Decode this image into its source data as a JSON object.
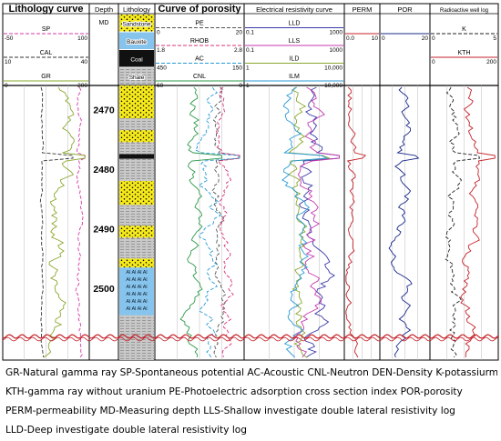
{
  "chart_data": {
    "type": "line",
    "tracks": [
      {
        "title": "Lithology curve",
        "curves": [
          {
            "name": "SP",
            "min": "-50",
            "max": "100",
            "color": "#d63aa8",
            "dash": true
          },
          {
            "name": "CAL",
            "min": "10",
            "max": "40",
            "color": "#333333",
            "dash": true
          },
          {
            "name": "GR",
            "min": "0",
            "max": "200",
            "color": "#8aa82e",
            "dash": false
          }
        ]
      },
      {
        "title": "Depth",
        "unit": "MD"
      },
      {
        "title": "Lithology",
        "legend": [
          "Sandstone",
          "Bauxite",
          "Coal",
          "Shale"
        ]
      },
      {
        "title": "Curve of porosity",
        "curves": [
          {
            "name": "PE",
            "min": "0",
            "max": "20",
            "color": "#555555",
            "dash": true
          },
          {
            "name": "RHOB",
            "min": "1.8",
            "max": "2.8",
            "color": "#d6337a",
            "dash": true
          },
          {
            "name": "AC",
            "min": "450",
            "max": "150",
            "color": "#2a9ad6",
            "dash": true
          },
          {
            "name": "CNL",
            "min": "60",
            "max": "0",
            "color": "#2e9a4a",
            "dash": false
          }
        ]
      },
      {
        "title": "Electrical resistivity curve",
        "curves": [
          {
            "name": "LLD",
            "min": "0.1",
            "max": "1000",
            "color": "#3a3aa8",
            "dash": false
          },
          {
            "name": "LLS",
            "min": "0.1",
            "max": "1000",
            "color": "#c43ab0",
            "dash": false
          },
          {
            "name": "ILD",
            "min": "1",
            "max": "10,000",
            "color": "#8aa82e",
            "dash": false
          },
          {
            "name": "ILM",
            "min": "1",
            "max": "10,000",
            "color": "#2a9ad6",
            "dash": false
          }
        ]
      },
      {
        "title": "PERM",
        "curves": [
          {
            "name": "",
            "min": "0.0",
            "max": "10",
            "color": "#c4222a",
            "dash": false
          }
        ]
      },
      {
        "title": "POR",
        "curves": [
          {
            "name": "",
            "min": "0",
            "max": "20",
            "color": "#1a2a8a",
            "dash": false
          }
        ]
      },
      {
        "title": "Radioactive well log",
        "curves": [
          {
            "name": "K",
            "min": "0",
            "max": "5",
            "color": "#222222",
            "dash": true
          },
          {
            "name": "KTH",
            "min": "0",
            "max": "200",
            "color": "#c4222a",
            "dash": false
          }
        ]
      }
    ],
    "depth_ticks": [
      2470,
      2480,
      2490,
      2500
    ],
    "depth_range": [
      2466,
      2512
    ],
    "lithology_column": [
      {
        "top": 2466,
        "base": 2471.5,
        "rock": "Sandstone"
      },
      {
        "top": 2471.5,
        "base": 2473.5,
        "rock": "Shale"
      },
      {
        "top": 2473.5,
        "base": 2475.5,
        "rock": "Sandstone"
      },
      {
        "top": 2475.5,
        "base": 2477.5,
        "rock": "Shale"
      },
      {
        "top": 2477.5,
        "base": 2478.3,
        "rock": "Coal"
      },
      {
        "top": 2478.3,
        "base": 2482,
        "rock": "Shale"
      },
      {
        "top": 2482,
        "base": 2486,
        "rock": "Sandstone"
      },
      {
        "top": 2486,
        "base": 2489.5,
        "rock": "Shale"
      },
      {
        "top": 2489.5,
        "base": 2491.5,
        "rock": "Sandstone"
      },
      {
        "top": 2491.5,
        "base": 2495,
        "rock": "Shale"
      },
      {
        "top": 2495,
        "base": 2496.5,
        "rock": "Sandstone"
      },
      {
        "top": 2496.5,
        "base": 2504.5,
        "rock": "Bauxite"
      },
      {
        "top": 2504.5,
        "base": 2512,
        "rock": "Shale"
      }
    ],
    "bauxite_label": "Al Al Al Al",
    "caption": [
      "GR-Natural gamma ray SP-Spontaneous potential AC-Acoustic CNL-Neutron DEN-Density K-potassiurm",
      "KTH-gamma ray without uranium   PE-Photoelectric adsorption cross section index   POR-porosity",
      "PERM-permeability   MD-Measuring depth   LLS-Shallow investigate double lateral resistivity log",
      "LLD-Deep investigate double lateral resistivity log"
    ]
  }
}
